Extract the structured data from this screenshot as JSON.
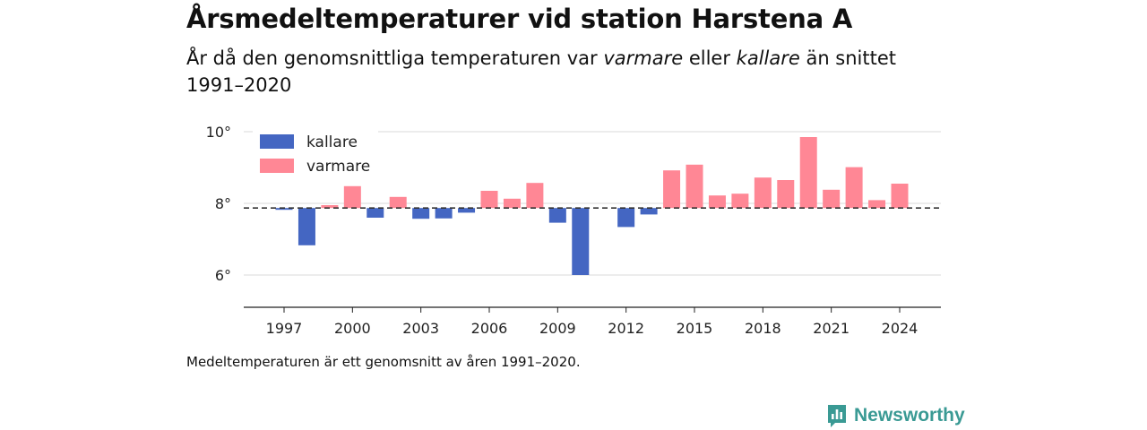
{
  "header": {
    "title": "Årsmedeltemperaturer vid station Harstena A",
    "subtitle_pre": "År då den genomsnittliga temperaturen var ",
    "subtitle_warm": "varmare",
    "subtitle_mid": " eller ",
    "subtitle_cold": "kallare",
    "subtitle_post": " än snittet 1991–2020"
  },
  "footnote": "Medeltemperaturen är ett genomsnitt av åren 1991–2020.",
  "brand": {
    "name": "Newsworthy",
    "icon": "newsworthy-logo-icon"
  },
  "colors": {
    "cold": "#4466c2",
    "warm": "#ff8795",
    "accent": "#3a9a94"
  },
  "chart_data": {
    "type": "bar",
    "baseline": 7.87,
    "ylim": [
      5.1,
      10.3
    ],
    "yticks": [
      6,
      8,
      10
    ],
    "ytick_labels": [
      "6°",
      "8°",
      "10°"
    ],
    "xticks": [
      1997,
      2000,
      2003,
      2006,
      2009,
      2012,
      2015,
      2018,
      2021,
      2024
    ],
    "legend": [
      "kallare",
      "varmare"
    ],
    "legend_position": "top-left",
    "grid": true,
    "series": [
      {
        "year": 1997,
        "value": 7.82
      },
      {
        "year": 1998,
        "value": 6.83
      },
      {
        "year": 1999,
        "value": 7.95
      },
      {
        "year": 2000,
        "value": 8.48
      },
      {
        "year": 2001,
        "value": 7.6
      },
      {
        "year": 2002,
        "value": 8.18
      },
      {
        "year": 2003,
        "value": 7.57
      },
      {
        "year": 2004,
        "value": 7.58
      },
      {
        "year": 2005,
        "value": 7.74
      },
      {
        "year": 2006,
        "value": 8.35
      },
      {
        "year": 2007,
        "value": 8.13
      },
      {
        "year": 2008,
        "value": 8.57
      },
      {
        "year": 2009,
        "value": 7.46
      },
      {
        "year": 2010,
        "value": 6.0
      },
      {
        "year": 2011,
        "value": null
      },
      {
        "year": 2012,
        "value": 7.34
      },
      {
        "year": 2013,
        "value": 7.69
      },
      {
        "year": 2014,
        "value": 8.92
      },
      {
        "year": 2015,
        "value": 9.08
      },
      {
        "year": 2016,
        "value": 8.22
      },
      {
        "year": 2017,
        "value": 8.27
      },
      {
        "year": 2018,
        "value": 8.72
      },
      {
        "year": 2019,
        "value": 8.65
      },
      {
        "year": 2020,
        "value": 9.85
      },
      {
        "year": 2021,
        "value": 8.38
      },
      {
        "year": 2022,
        "value": 9.01
      },
      {
        "year": 2023,
        "value": 8.09
      },
      {
        "year": 2024,
        "value": 8.55
      }
    ]
  }
}
